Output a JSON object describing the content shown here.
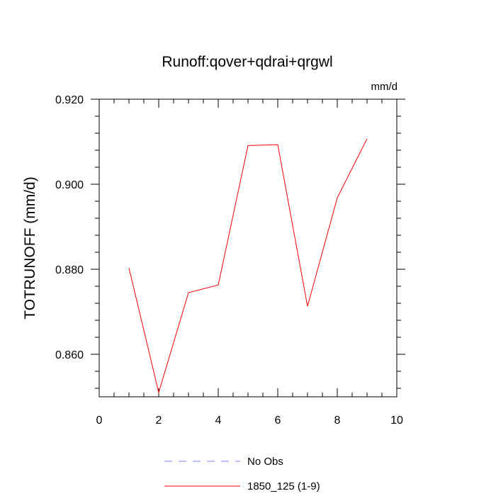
{
  "chart_data": {
    "type": "line",
    "title": "Runoff:qover+qdrai+qrgwl",
    "units_label": "mm/d",
    "xlabel": "",
    "ylabel": "TOTRUNOFF  (mm/d)",
    "xlim": [
      0,
      10
    ],
    "ylim": [
      0.85,
      0.92
    ],
    "x_ticks": [
      0,
      2,
      4,
      6,
      8,
      10
    ],
    "x_tick_labels": [
      "0",
      "2",
      "4",
      "6",
      "8",
      "10"
    ],
    "y_ticks": [
      0.86,
      0.88,
      0.9,
      0.92
    ],
    "y_tick_labels": [
      "0.860",
      "0.880",
      "0.900",
      "0.920"
    ],
    "grid": false,
    "legend_position": "bottom",
    "legend": [
      {
        "label": "No Obs",
        "color": "#8080ff",
        "dash": "dashed"
      },
      {
        "label": "1850_125 (1-9)",
        "color": "#ff0000",
        "dash": "solid"
      }
    ],
    "series": [
      {
        "name": "1850_125 (1-9)",
        "color": "#ff0000",
        "x": [
          1,
          2,
          3,
          4,
          5,
          6,
          7,
          8,
          9
        ],
        "y": [
          0.8803,
          0.851,
          0.8745,
          0.8763,
          0.9091,
          0.9093,
          0.8713,
          0.8968,
          0.9107
        ]
      }
    ]
  }
}
